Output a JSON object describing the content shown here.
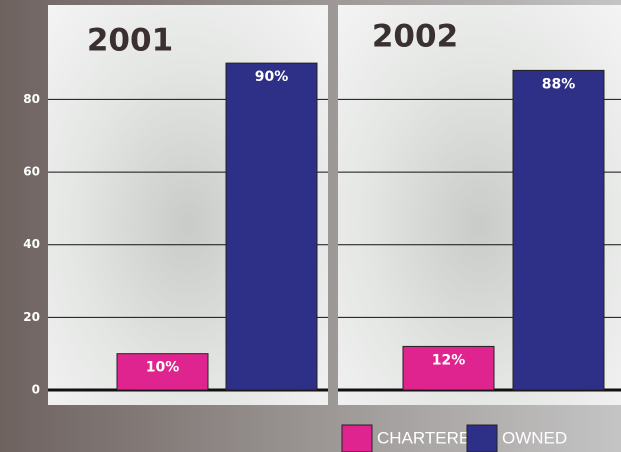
{
  "chart_data": [
    {
      "type": "bar",
      "title": "2001",
      "series": [
        {
          "name": "CHARTERED",
          "color": "#e0248f",
          "values": [
            10
          ],
          "value_labels": [
            "10%"
          ]
        },
        {
          "name": "OWNED",
          "color": "#2e2f86",
          "values": [
            90
          ],
          "value_labels": [
            "90%"
          ]
        }
      ],
      "ylim": [
        0,
        106
      ],
      "yticks": [
        0,
        20,
        40,
        60,
        80
      ],
      "grid": true
    },
    {
      "type": "bar",
      "title": "2002",
      "series": [
        {
          "name": "CHARTERED",
          "color": "#e0248f",
          "values": [
            12
          ],
          "value_labels": [
            "12%"
          ]
        },
        {
          "name": "OWNED",
          "color": "#2e2f86",
          "values": [
            88
          ],
          "value_labels": [
            "88%"
          ]
        }
      ],
      "ylim": [
        0,
        106
      ],
      "yticks": [
        0,
        20,
        40,
        60,
        80
      ],
      "grid": true
    }
  ]
}
